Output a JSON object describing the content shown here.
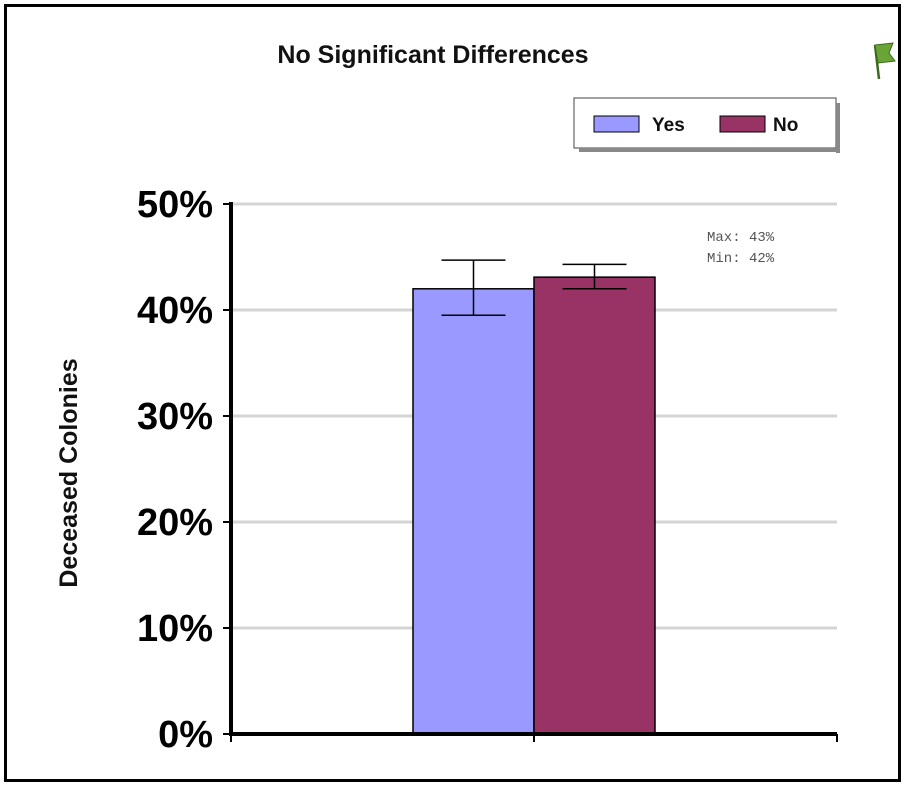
{
  "chart_data": {
    "type": "bar",
    "title": "No Significant Differences",
    "ylabel": "Deceased Colonies",
    "xlabel": "",
    "ylim": [
      0,
      50
    ],
    "yticks": [
      "0%",
      "10%",
      "20%",
      "30%",
      "40%",
      "50%"
    ],
    "ytick_values": [
      0,
      10,
      20,
      30,
      40,
      50
    ],
    "grid": true,
    "legend_position": "top-right",
    "series": [
      {
        "name": "Yes",
        "value": 42,
        "error_low": 39.5,
        "error_high": 44.7,
        "color": "#9999ff"
      },
      {
        "name": "No",
        "value": 43.1,
        "error_low": 42,
        "error_high": 44.3,
        "color": "#993366"
      }
    ],
    "annotations": [
      "Max: 43%",
      "Min: 42%"
    ]
  },
  "icons": {
    "corner": "flag-icon",
    "corner_color": "#5a8a2a"
  }
}
